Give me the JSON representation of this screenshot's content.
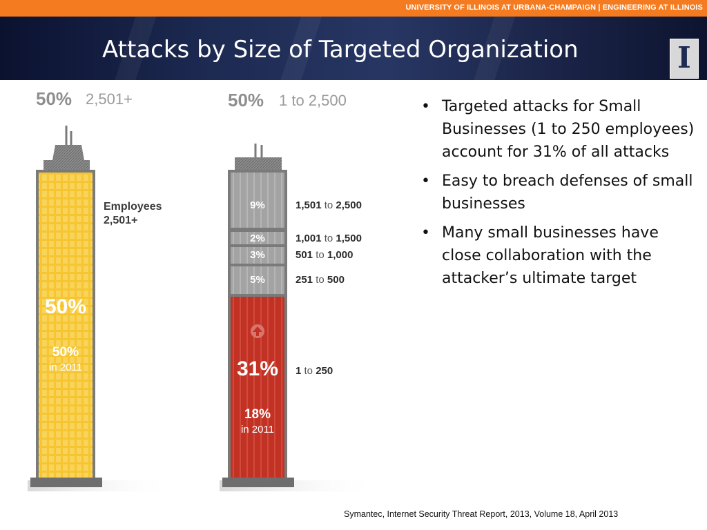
{
  "header": {
    "university_banner": "UNIVERSITY OF ILLINOIS AT URBANA-CHAMPAIGN | ENGINEERING AT ILLINOIS",
    "title": "Attacks by Size of Targeted Organization",
    "logo_letter": "I"
  },
  "colors": {
    "accent_orange": "#f47b20",
    "banner_navy": "#1d2a52",
    "tower_large": "#f6c531",
    "tower_small_gray": "#9e9e9e",
    "tower_small_red": "#c23224"
  },
  "chart_data": {
    "type": "bar",
    "title": "",
    "towers": [
      {
        "share_label": "50%",
        "range_label": "2,501+",
        "segments": [
          {
            "range": "Employees 2,501+",
            "value": 50,
            "label": "50%",
            "previous_label": "50%",
            "previous_year": "in 2011"
          }
        ]
      },
      {
        "share_label": "50%",
        "range_label": "1 to 2,500",
        "segments": [
          {
            "range_from": "1,501",
            "range_to": "2,500",
            "value": 9,
            "label": "9%"
          },
          {
            "range_from": "1,001",
            "range_to": "1,500",
            "value": 2,
            "label": "2%"
          },
          {
            "range_from": "501",
            "range_to": "1,000",
            "value": 3,
            "label": "3%"
          },
          {
            "range_from": "251",
            "range_to": "500",
            "value": 5,
            "label": "5%"
          },
          {
            "range_from": "1",
            "range_to": "250",
            "value": 31,
            "label": "31%",
            "previous_label": "18%",
            "previous_year": "in 2011"
          }
        ]
      }
    ],
    "connector_word": "to",
    "employees_label": "Employees",
    "employees_range": "2,501+"
  },
  "bullets": [
    "Targeted attacks for Small Businesses (1 to 250 employees) account for 31% of all attacks",
    "Easy to breach defenses of small businesses",
    "Many small businesses have close collaboration with the attacker’s ultimate target"
  ],
  "bullet_glyph": "•",
  "source": "Symantec, Internet Security Threat Report, 2013, Volume 18, April 2013"
}
